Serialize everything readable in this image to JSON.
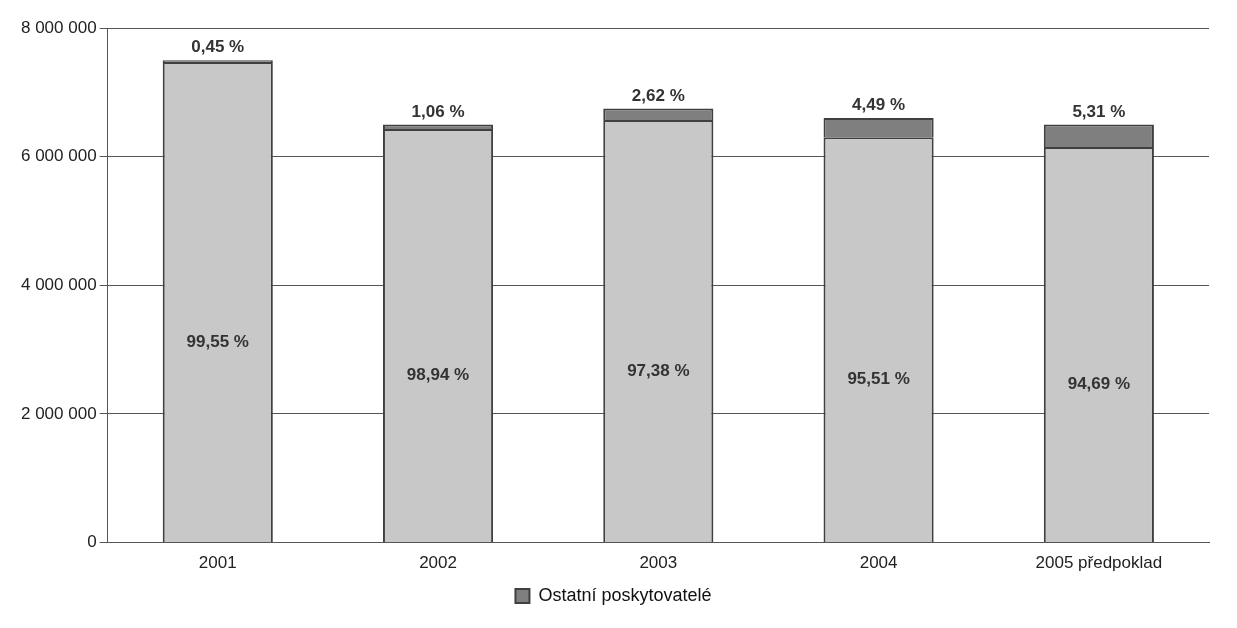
{
  "chart_data": {
    "type": "bar",
    "stacked": true,
    "categories": [
      "2001",
      "2002",
      "2003",
      "2004",
      "2005 předpoklad"
    ],
    "series": [
      {
        "color": "#c8c8c8",
        "values": [
          7470000,
          6430000,
          6570000,
          6300000,
          6150000
        ]
      },
      {
        "name": "Ostatní poskytovatelé",
        "color": "#7f7f7f",
        "values": [
          30000,
          70000,
          180000,
          300000,
          350000
        ]
      }
    ],
    "annotations": [
      "99,55 %",
      "98,94 %",
      "97,38 %",
      "95,51 %",
      "94,69 %",
      "0,45 %",
      "1,06 %",
      "2,62 %",
      "4,49 %",
      "5,31 %"
    ],
    "ylim": [
      0,
      8000000
    ],
    "yticks": [
      0,
      {
        "value": 2000000,
        "label": "2 000 000"
      },
      {
        "value": 4000000,
        "label": "4 000 000"
      },
      {
        "value": 6000000,
        "label": "6 000 000"
      },
      {
        "value": 8000000,
        "label": "8 000 000"
      }
    ],
    "grid": "y",
    "legend": "bottom"
  }
}
